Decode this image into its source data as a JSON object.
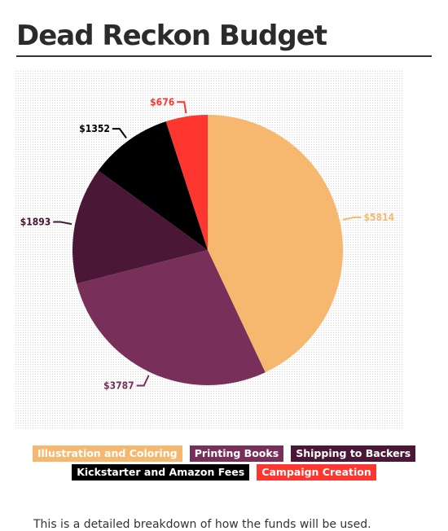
{
  "page": {
    "title": "Dead Reckon Budget",
    "description": "This is a detailed breakdown of how the funds will be used."
  },
  "chart_data": {
    "type": "pie",
    "title": "",
    "start": "12 o'clock, clockwise",
    "slices": [
      {
        "label": "Illustration and Coloring",
        "value": 5814,
        "display": "$5814",
        "color": "#f5b86e"
      },
      {
        "label": "Printing Books",
        "value": 3787,
        "display": "$3787",
        "color": "#78305b"
      },
      {
        "label": "Shipping to Backers",
        "value": 1893,
        "display": "$1893",
        "color": "#4a1736"
      },
      {
        "label": "Kickstarter and Amazon Fees",
        "value": 1352,
        "display": "$1352",
        "color": "#000000"
      },
      {
        "label": "Campaign Creation",
        "value": 676,
        "display": "$676",
        "color": "#ff3530"
      }
    ]
  }
}
